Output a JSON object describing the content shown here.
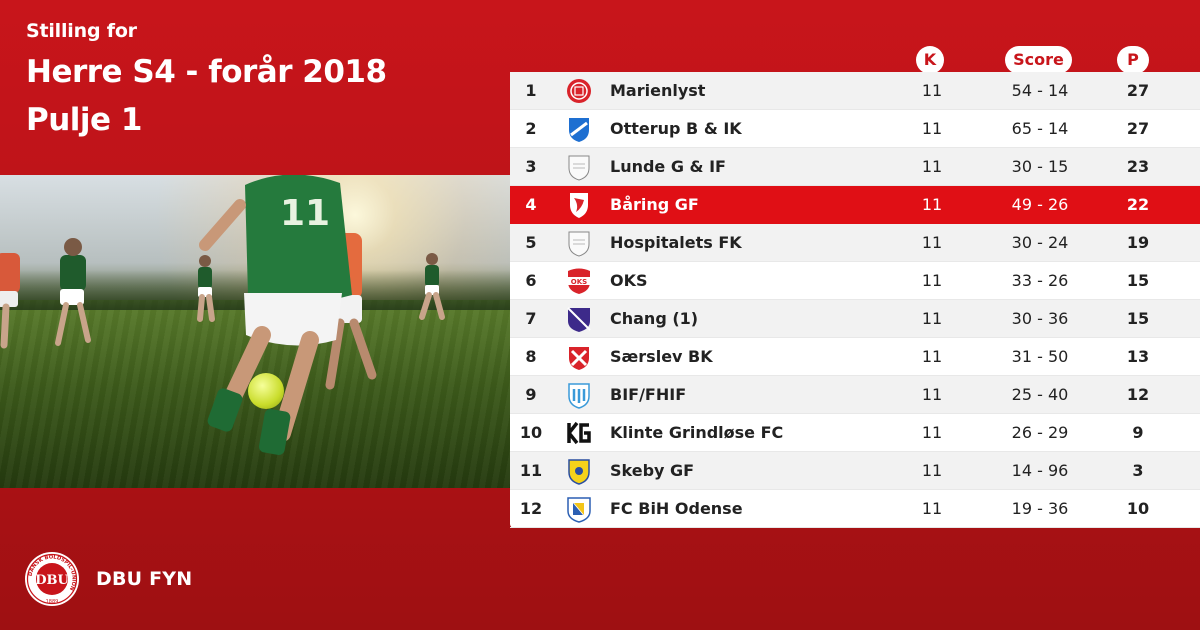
{
  "header": {
    "subtitle": "Stilling for",
    "title": "Herre S4 - forår 2018",
    "title2": "Pulje 1"
  },
  "columns": {
    "k": "K",
    "score": "Score",
    "p": "P"
  },
  "colors": {
    "brand_red": "#c8151b",
    "highlight": "#e00f15",
    "text_dark": "#222222"
  },
  "highlight_team": "Båring GF",
  "rows": [
    {
      "pos": "1",
      "team": "Marienlyst",
      "k": "11",
      "score": "54 - 14",
      "p": "27",
      "logo": "marienlyst-crest-icon"
    },
    {
      "pos": "2",
      "team": "Otterup B & IK",
      "k": "11",
      "score": "65 - 14",
      "p": "27",
      "logo": "otterup-crest-icon"
    },
    {
      "pos": "3",
      "team": "Lunde G & IF",
      "k": "11",
      "score": "30 - 15",
      "p": "23",
      "logo": "generic-shield-icon"
    },
    {
      "pos": "4",
      "team": "Båring GF",
      "k": "11",
      "score": "49 - 26",
      "p": "22",
      "logo": "baring-crest-icon"
    },
    {
      "pos": "5",
      "team": "Hospitalets FK",
      "k": "11",
      "score": "30 - 24",
      "p": "19",
      "logo": "generic-shield-icon"
    },
    {
      "pos": "6",
      "team": "OKS",
      "k": "11",
      "score": "33 - 26",
      "p": "15",
      "logo": "oks-crest-icon"
    },
    {
      "pos": "7",
      "team": "Chang (1)",
      "k": "11",
      "score": "30 - 36",
      "p": "15",
      "logo": "chang-crest-icon"
    },
    {
      "pos": "8",
      "team": "Særslev BK",
      "k": "11",
      "score": "31 - 50",
      "p": "13",
      "logo": "saerslev-crest-icon"
    },
    {
      "pos": "9",
      "team": "BIF/FHIF",
      "k": "11",
      "score": "25 - 40",
      "p": "12",
      "logo": "bif-crest-icon"
    },
    {
      "pos": "10",
      "team": "Klinte Grindløse FC",
      "k": "11",
      "score": "26 - 29",
      "p": "9",
      "logo": "kg-crest-icon"
    },
    {
      "pos": "11",
      "team": "Skeby GF",
      "k": "11",
      "score": "14 - 96",
      "p": "3",
      "logo": "skeby-crest-icon"
    },
    {
      "pos": "12",
      "team": "FC BiH Odense",
      "k": "11",
      "score": "19 - 36",
      "p": "10",
      "logo": "bih-crest-icon"
    }
  ],
  "footer": {
    "org": "DBU FYN",
    "logo_text": "DBU",
    "logo_ring_text": "DANSK BOLDSPIL-UNION",
    "logo_year": "1889"
  }
}
